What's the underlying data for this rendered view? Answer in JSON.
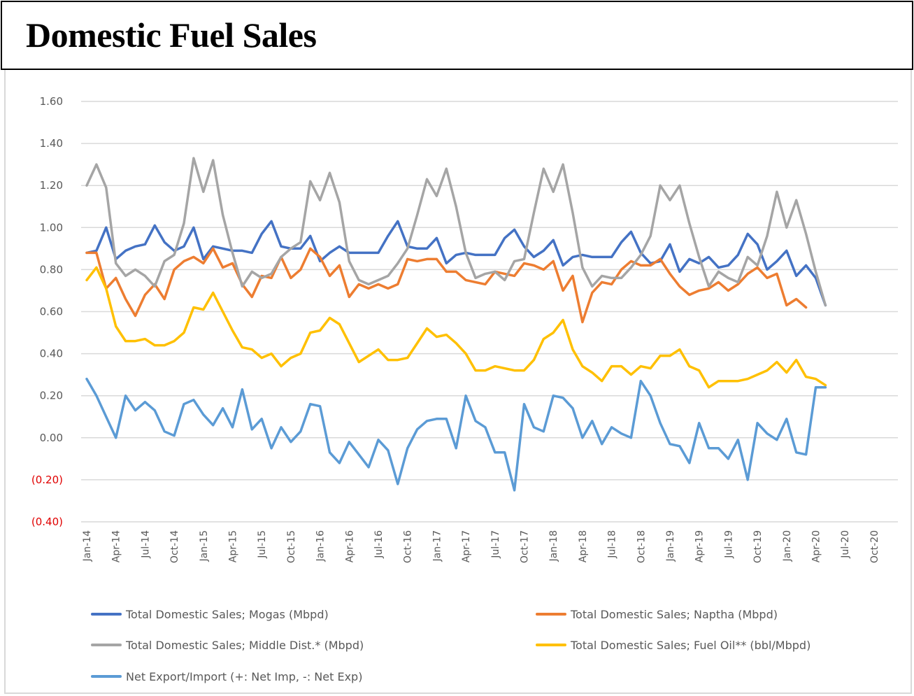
{
  "header": {
    "title": "Domestic Fuel Sales"
  },
  "chart_data": {
    "type": "line",
    "title": "Domestic Fuel Sales",
    "xlabel": "",
    "ylabel": "",
    "ylim": [
      -0.4,
      1.6
    ],
    "y_ticks": [
      1.6,
      1.4,
      1.2,
      1.0,
      0.8,
      0.6,
      0.4,
      0.2,
      0.0,
      -0.2,
      -0.4
    ],
    "y_tick_labels": [
      "1.60",
      "1.40",
      "1.20",
      "1.00",
      "0.80",
      "0.60",
      "0.40",
      "0.20",
      "0.00",
      "(0.20)",
      "(0.40)"
    ],
    "negative_label_color": "#e00000",
    "grid": true,
    "legend_position": "bottom",
    "x_tick_labels": [
      "Jan-14",
      "Apr-14",
      "Jul-14",
      "Oct-14",
      "Jan-15",
      "Apr-15",
      "Jul-15",
      "Oct-15",
      "Jan-16",
      "Apr-16",
      "Jul-16",
      "Oct-16",
      "Jan-17",
      "Apr-17",
      "Jul-17",
      "Oct-17",
      "Jan-18",
      "Apr-18",
      "Jul-18",
      "Oct-18",
      "Jan-19",
      "Apr-19",
      "Jul-19",
      "Oct-19",
      "Jan-20",
      "Apr-20",
      "Jul-20",
      "Oct-20"
    ],
    "x_start": "Jan-14",
    "x_axis_months": 82,
    "series": [
      {
        "name": "Total Domestic Sales; Mogas (Mbpd)",
        "color": "#4472c4",
        "values": [
          0.88,
          0.89,
          1.0,
          0.85,
          0.89,
          0.91,
          0.92,
          1.01,
          0.93,
          0.89,
          0.91,
          1.0,
          0.85,
          0.91,
          0.9,
          0.89,
          0.89,
          0.88,
          0.97,
          1.03,
          0.91,
          0.9,
          0.9,
          0.96,
          0.84,
          0.88,
          0.91,
          0.88,
          0.88,
          0.88,
          0.88,
          0.96,
          1.03,
          0.91,
          0.9,
          0.9,
          0.95,
          0.83,
          0.87,
          0.88,
          0.87,
          0.87,
          0.87,
          0.95,
          0.99,
          0.91,
          0.86,
          0.89,
          0.94,
          0.82,
          0.86,
          0.87,
          0.86,
          0.86,
          0.86,
          0.93,
          0.98,
          0.88,
          0.83,
          0.84,
          0.92,
          0.79,
          0.85,
          0.83,
          0.86,
          0.81,
          0.82,
          0.87,
          0.97,
          0.92,
          0.8,
          0.84,
          0.89,
          0.77,
          0.82,
          0.76,
          0.63
        ]
      },
      {
        "name": "Total Domestic Sales; Naptha (Mbpd)",
        "color": "#ed7d31",
        "values": [
          0.88,
          0.88,
          0.71,
          0.76,
          0.66,
          0.58,
          0.68,
          0.73,
          0.66,
          0.8,
          0.84,
          0.86,
          0.83,
          0.9,
          0.81,
          0.83,
          0.73,
          0.67,
          0.77,
          0.76,
          0.86,
          0.76,
          0.8,
          0.9,
          0.86,
          0.77,
          0.82,
          0.67,
          0.73,
          0.71,
          0.73,
          0.71,
          0.73,
          0.85,
          0.84,
          0.85,
          0.85,
          0.79,
          0.79,
          0.75,
          0.74,
          0.73,
          0.79,
          0.78,
          0.77,
          0.83,
          0.82,
          0.8,
          0.84,
          0.7,
          0.77,
          0.55,
          0.69,
          0.74,
          0.73,
          0.8,
          0.84,
          0.82,
          0.82,
          0.85,
          0.78,
          0.72,
          0.68,
          0.7,
          0.71,
          0.74,
          0.7,
          0.73,
          0.78,
          0.81,
          0.76,
          0.78,
          0.63,
          0.66,
          0.62
        ]
      },
      {
        "name": "Total Domestic Sales; Middle Dist.* (Mbpd)",
        "color": "#a5a5a5",
        "values": [
          1.2,
          1.3,
          1.19,
          0.83,
          0.77,
          0.8,
          0.77,
          0.72,
          0.84,
          0.87,
          1.02,
          1.33,
          1.17,
          1.32,
          1.06,
          0.88,
          0.72,
          0.79,
          0.76,
          0.78,
          0.86,
          0.9,
          0.93,
          1.22,
          1.13,
          1.26,
          1.12,
          0.84,
          0.75,
          0.73,
          0.75,
          0.77,
          0.83,
          0.9,
          1.06,
          1.23,
          1.15,
          1.28,
          1.1,
          0.88,
          0.76,
          0.78,
          0.79,
          0.75,
          0.84,
          0.85,
          1.07,
          1.28,
          1.17,
          1.3,
          1.07,
          0.81,
          0.72,
          0.77,
          0.76,
          0.76,
          0.81,
          0.87,
          0.96,
          1.2,
          1.13,
          1.2,
          1.02,
          0.86,
          0.72,
          0.79,
          0.76,
          0.74,
          0.86,
          0.82,
          0.96,
          1.17,
          1.0,
          1.13,
          0.97,
          0.79,
          0.63
        ]
      },
      {
        "name": "Total Domestic Sales; Fuel Oil** (bbl/Mbpd)",
        "color": "#ffc000",
        "values": [
          0.75,
          0.81,
          0.71,
          0.53,
          0.46,
          0.46,
          0.47,
          0.44,
          0.44,
          0.46,
          0.5,
          0.62,
          0.61,
          0.69,
          0.6,
          0.51,
          0.43,
          0.42,
          0.38,
          0.4,
          0.34,
          0.38,
          0.4,
          0.5,
          0.51,
          0.57,
          0.54,
          0.45,
          0.36,
          0.39,
          0.42,
          0.37,
          0.37,
          0.38,
          0.45,
          0.52,
          0.48,
          0.49,
          0.45,
          0.4,
          0.32,
          0.32,
          0.34,
          0.33,
          0.32,
          0.32,
          0.37,
          0.47,
          0.5,
          0.56,
          0.42,
          0.34,
          0.31,
          0.27,
          0.34,
          0.34,
          0.3,
          0.34,
          0.33,
          0.39,
          0.39,
          0.42,
          0.34,
          0.32,
          0.24,
          0.27,
          0.27,
          0.27,
          0.28,
          0.3,
          0.32,
          0.36,
          0.31,
          0.37,
          0.29,
          0.28,
          0.25
        ]
      },
      {
        "name": "Net Export/Import (+: Net Imp, -: Net Exp)",
        "color": "#5b9bd5",
        "values": [
          0.28,
          0.2,
          0.1,
          0.0,
          0.2,
          0.13,
          0.17,
          0.13,
          0.03,
          0.01,
          0.16,
          0.18,
          0.11,
          0.06,
          0.14,
          0.05,
          0.23,
          0.04,
          0.09,
          -0.05,
          0.05,
          -0.02,
          0.03,
          0.16,
          0.15,
          -0.07,
          -0.12,
          -0.02,
          -0.08,
          -0.14,
          -0.01,
          -0.06,
          -0.22,
          -0.05,
          0.04,
          0.08,
          0.09,
          0.09,
          -0.05,
          0.2,
          0.08,
          0.05,
          -0.07,
          -0.07,
          -0.25,
          0.16,
          0.05,
          0.03,
          0.2,
          0.19,
          0.14,
          0.0,
          0.08,
          -0.03,
          0.05,
          0.02,
          0.0,
          0.27,
          0.2,
          0.07,
          -0.03,
          -0.04,
          -0.12,
          0.07,
          -0.05,
          -0.05,
          -0.1,
          -0.01,
          -0.2,
          0.07,
          0.02,
          -0.01,
          0.09,
          -0.07,
          -0.08,
          0.24,
          0.24
        ]
      }
    ]
  },
  "legend": {
    "items": [
      {
        "label": "Total Domestic Sales; Mogas (Mbpd)",
        "color": "#4472c4"
      },
      {
        "label": "Total Domestic Sales; Naptha (Mbpd)",
        "color": "#ed7d31"
      },
      {
        "label": "Total Domestic Sales; Middle Dist.* (Mbpd)",
        "color": "#a5a5a5"
      },
      {
        "label": "Total Domestic Sales; Fuel Oil** (bbl/Mbpd)",
        "color": "#ffc000"
      },
      {
        "label": "Net Export/Import (+: Net Imp, -: Net Exp)",
        "color": "#5b9bd5"
      }
    ]
  }
}
